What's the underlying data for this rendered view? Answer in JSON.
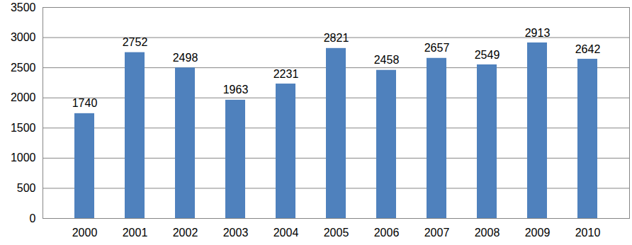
{
  "chart_data": {
    "type": "bar",
    "categories": [
      "2000",
      "2001",
      "2002",
      "2003",
      "2004",
      "2005",
      "2006",
      "2007",
      "2008",
      "2009",
      "2010"
    ],
    "values": [
      1740,
      2752,
      2498,
      1963,
      2231,
      2821,
      2458,
      2657,
      2549,
      2913,
      2642
    ],
    "color": "#4f81bd",
    "ylim": [
      0,
      3500
    ],
    "yticks": [
      0,
      500,
      1000,
      1500,
      2000,
      2500,
      3000,
      3500
    ],
    "grid": true,
    "data_labels": true
  }
}
